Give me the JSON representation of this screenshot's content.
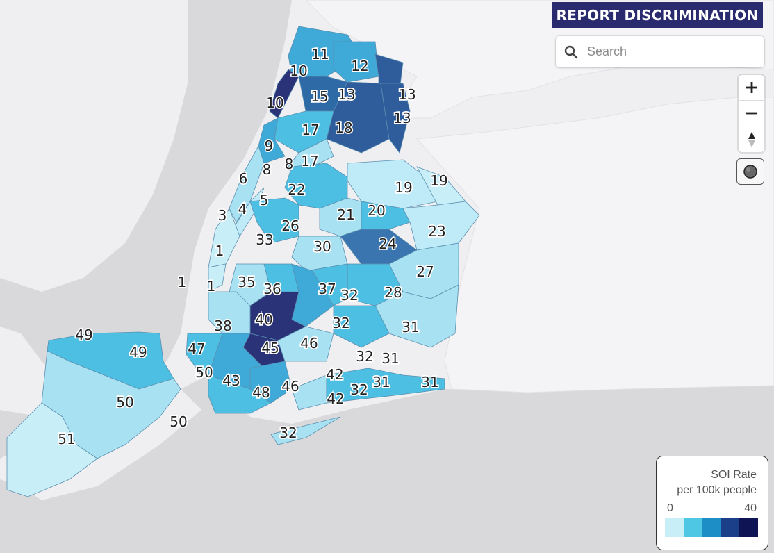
{
  "header": {
    "report_button": "REPORT DISCRIMINATION"
  },
  "search": {
    "placeholder": "Search",
    "value": ""
  },
  "controls": {
    "zoom_in": "+",
    "zoom_out": "−",
    "compass": "▲"
  },
  "legend": {
    "title": "SOI Rate",
    "subtitle": "per 100k people",
    "min_label": "0",
    "max_label": "40",
    "colors": [
      "#c8eef8",
      "#4ec7e5",
      "#1e8ec7",
      "#1c3f8a",
      "#0f1455"
    ]
  },
  "colors": {
    "water": "#d9d9db",
    "land": "#efeff1",
    "header_bg": "#2a2b6e"
  },
  "district_labels": [
    "11",
    "10",
    "12",
    "13",
    "13",
    "10",
    "15",
    "13",
    "17",
    "18",
    "9",
    "8",
    "8",
    "17",
    "6",
    "22",
    "19",
    "19",
    "5",
    "3",
    "4",
    "21",
    "20",
    "23",
    "26",
    "33",
    "1",
    "30",
    "24",
    "27",
    "1",
    "1",
    "35",
    "36",
    "37",
    "32",
    "28",
    "40",
    "32",
    "31",
    "38",
    "47",
    "45",
    "46",
    "49",
    "49",
    "32",
    "31",
    "50",
    "42",
    "31",
    "31",
    "43",
    "48",
    "46",
    "32",
    "50",
    "42",
    "50",
    "51",
    "32"
  ]
}
